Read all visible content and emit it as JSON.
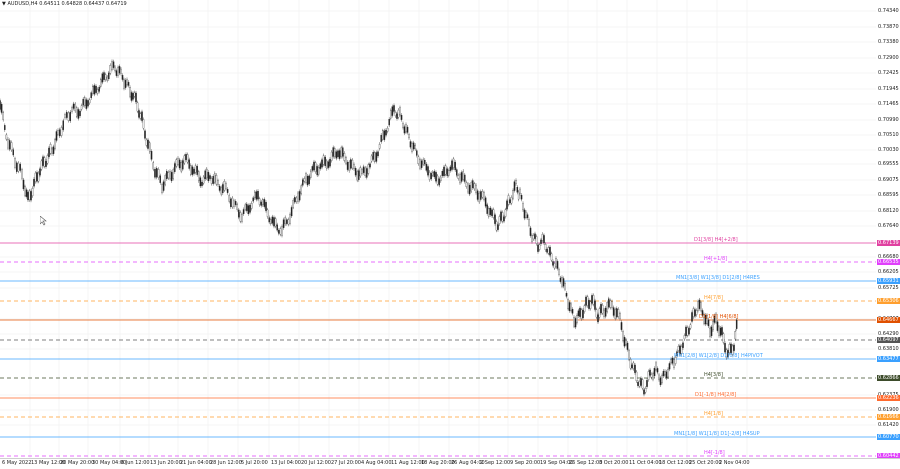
{
  "header": {
    "menu_icon": "triangle-down",
    "symbol_text": "AUDUSD,H4",
    "ohlc_text": "0.64511 0.64828 0.64437 0.64719"
  },
  "price_axis": {
    "labels": [
      "0.74340",
      "0.73870",
      "0.73380",
      "0.72900",
      "0.72425",
      "0.71945",
      "0.71465",
      "0.70990",
      "0.70510",
      "0.70030",
      "0.69555",
      "0.69075",
      "0.68595",
      "0.68120",
      "0.67640",
      "0.66680",
      "0.66205",
      "0.65725",
      "0.64767",
      "0.64290",
      "0.63810",
      "0.62375",
      "0.61900",
      "0.61420"
    ],
    "tags": [
      {
        "text": "0.67139",
        "color": "#e040a0"
      },
      {
        "text": "0.66535",
        "color": "#e040fb"
      },
      {
        "text": "0.65931",
        "color": "#3aa0ff"
      },
      {
        "text": "0.65306",
        "color": "#ff9f2e"
      },
      {
        "text": "0.64667",
        "color": "#e05000"
      },
      {
        "text": "0.64097",
        "color": "#555555"
      },
      {
        "text": "0.63477",
        "color": "#3aa0ff"
      },
      {
        "text": "0.62866",
        "color": "#3d4c2b"
      },
      {
        "text": "0.62236",
        "color": "#ff6a2e"
      },
      {
        "text": "0.61666",
        "color": "#ff9f2e"
      },
      {
        "text": "0.60770",
        "color": "#3aa0ff"
      },
      {
        "text": "0.60442",
        "color": "#e040fb"
      }
    ]
  },
  "time_axis": {
    "labels": [
      "6 May 2022",
      "13 May 12:00",
      "20 May 20:00",
      "30 May 04:00",
      "6 Jun 12:00",
      "13 Jun 20:00",
      "21 Jun 04:00",
      "28 Jun 12:00",
      "5 Jul 20:00",
      "13 Jul 04:00",
      "20 Jul 12:00",
      "27 Jul 20:00",
      "4 Aug 04:00",
      "11 Aug 12:00",
      "18 Aug 20:00",
      "26 Aug 04:00",
      "2 Sep 12:00",
      "9 Sep 20:00",
      "19 Sep 04:00",
      "26 Sep 12:00",
      "3 Oct 20:00",
      "11 Oct 04:00",
      "18 Oct 12:00",
      "25 Oct 20:00",
      "2 Nov 04:00"
    ]
  },
  "levels": [
    {
      "text": "D1[3/8] H4[+2/8]",
      "color": "#e040a0",
      "style": "solid"
    },
    {
      "text": "H4[+1/8]",
      "color": "#e040fb",
      "style": "dashed"
    },
    {
      "text": "MN1[3/8] W1[3/8] D1[2/8] H4RES",
      "color": "#3aa0ff",
      "style": "solid"
    },
    {
      "text": "H4[7/8]",
      "color": "#ff9f2e",
      "style": "dashed"
    },
    {
      "text": "D1[1/8] H4[6/8]",
      "color": "#e05000",
      "style": "solid"
    },
    {
      "text": "",
      "color": "#555555",
      "style": "dashed"
    },
    {
      "text": "MN1[2/8] W1[2/8] D1[0/8] H4PIVOT",
      "color": "#3aa0ff",
      "style": "solid"
    },
    {
      "text": "H4[3/8]",
      "color": "#3d4c2b",
      "style": "dashed"
    },
    {
      "text": "D1[-1/8] H4[2/8]",
      "color": "#ff6a2e",
      "style": "solid"
    },
    {
      "text": "H4[1/8]",
      "color": "#ff9f2e",
      "style": "dashed"
    },
    {
      "text": "MN1[1/8] W1[1/8] D1[-2/8] H4SUP",
      "color": "#3aa0ff",
      "style": "solid"
    },
    {
      "text": "H4[-1/8]",
      "color": "#e040fb",
      "style": "dashed"
    }
  ],
  "icons": {
    "cursor": "mouse-pointer-icon"
  }
}
